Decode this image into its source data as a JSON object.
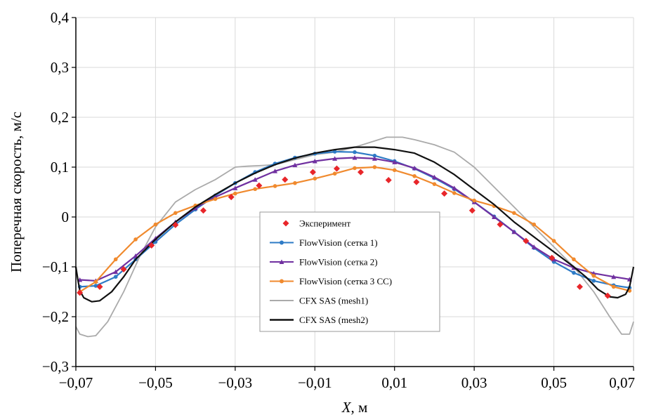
{
  "chart_data": {
    "type": "line",
    "xlabel_var": "X",
    "xlabel_unit": ", м",
    "ylabel": "Поперечная скорость, м/с",
    "xlim": [
      -0.07,
      0.07
    ],
    "ylim": [
      -0.3,
      0.4
    ],
    "x_ticks": [
      -0.07,
      -0.05,
      -0.03,
      -0.01,
      0.01,
      0.03,
      0.05,
      0.07
    ],
    "x_tick_labels": [
      "−0,07",
      "−0,05",
      "−0,03",
      "−0,01",
      "0,01",
      "0,03",
      "0,05",
      "0,07"
    ],
    "y_ticks": [
      -0.3,
      -0.2,
      -0.1,
      0,
      0.1,
      0.2,
      0.3,
      0.4
    ],
    "y_tick_labels": [
      "−0,3",
      "−0,2",
      "−0,1",
      "0",
      "0,1",
      "0,2",
      "0,3",
      "0,4"
    ],
    "grid": true,
    "legend_position": "center",
    "series": [
      {
        "name": "Эксперимент",
        "style": "diamond-markers",
        "color": "#e8262a",
        "x": [
          -0.069,
          -0.064,
          -0.058,
          -0.051,
          -0.045,
          -0.038,
          -0.031,
          -0.024,
          -0.0175,
          -0.0105,
          -0.0045,
          0.0015,
          0.0085,
          0.0155,
          0.0225,
          0.0295,
          0.0365,
          0.043,
          0.0495,
          0.0565,
          0.0635
        ],
        "y": [
          -0.152,
          -0.14,
          -0.105,
          -0.057,
          -0.016,
          0.013,
          0.04,
          0.063,
          0.075,
          0.09,
          0.097,
          0.09,
          0.074,
          0.07,
          0.047,
          0.013,
          -0.015,
          -0.048,
          -0.082,
          -0.14,
          -0.158
        ]
      },
      {
        "name": "FlowVision (сетка 1)",
        "style": "line-markers",
        "color": "#2e7bc6",
        "x": [
          -0.069,
          -0.065,
          -0.06,
          -0.055,
          -0.05,
          -0.045,
          -0.04,
          -0.035,
          -0.03,
          -0.025,
          -0.02,
          -0.015,
          -0.01,
          -0.005,
          0,
          0.005,
          0.01,
          0.015,
          0.02,
          0.025,
          0.03,
          0.035,
          0.04,
          0.045,
          0.05,
          0.055,
          0.06,
          0.065,
          0.069
        ],
        "y": [
          -0.14,
          -0.138,
          -0.12,
          -0.085,
          -0.05,
          -0.015,
          0.015,
          0.043,
          0.068,
          0.09,
          0.107,
          0.119,
          0.127,
          0.131,
          0.13,
          0.123,
          0.112,
          0.097,
          0.078,
          0.056,
          0.03,
          0.001,
          -0.03,
          -0.062,
          -0.09,
          -0.112,
          -0.128,
          -0.137,
          -0.142
        ]
      },
      {
        "name": "FlowVision (сетка 2)",
        "style": "line-markers",
        "color": "#7030a0",
        "x": [
          -0.069,
          -0.065,
          -0.06,
          -0.055,
          -0.05,
          -0.045,
          -0.04,
          -0.035,
          -0.03,
          -0.025,
          -0.02,
          -0.015,
          -0.01,
          -0.005,
          0,
          0.005,
          0.01,
          0.015,
          0.02,
          0.025,
          0.03,
          0.035,
          0.04,
          0.045,
          0.05,
          0.055,
          0.06,
          0.065,
          0.069
        ],
        "y": [
          -0.126,
          -0.128,
          -0.11,
          -0.078,
          -0.043,
          -0.01,
          0.018,
          0.04,
          0.058,
          0.075,
          0.092,
          0.104,
          0.112,
          0.117,
          0.119,
          0.117,
          0.11,
          0.098,
          0.08,
          0.058,
          0.03,
          0.0,
          -0.03,
          -0.06,
          -0.085,
          -0.102,
          -0.113,
          -0.12,
          -0.125
        ]
      },
      {
        "name": "FlowVision (сетка 3 СС)",
        "style": "line-markers",
        "color": "#f08a2e",
        "x": [
          -0.069,
          -0.065,
          -0.06,
          -0.055,
          -0.05,
          -0.045,
          -0.04,
          -0.035,
          -0.03,
          -0.025,
          -0.02,
          -0.015,
          -0.01,
          -0.005,
          0,
          0.005,
          0.01,
          0.015,
          0.02,
          0.025,
          0.03,
          0.035,
          0.04,
          0.045,
          0.05,
          0.055,
          0.06,
          0.065,
          0.069
        ],
        "y": [
          -0.15,
          -0.13,
          -0.085,
          -0.045,
          -0.015,
          0.008,
          0.023,
          0.036,
          0.047,
          0.056,
          0.062,
          0.068,
          0.077,
          0.087,
          0.098,
          0.1,
          0.094,
          0.082,
          0.066,
          0.048,
          0.033,
          0.022,
          0.008,
          -0.015,
          -0.048,
          -0.085,
          -0.118,
          -0.14,
          -0.148
        ]
      },
      {
        "name": "CFX SAS (mesh1)",
        "style": "line",
        "color": "#aaaaaa",
        "x": [
          -0.07,
          -0.069,
          -0.067,
          -0.065,
          -0.062,
          -0.058,
          -0.054,
          -0.05,
          -0.045,
          -0.04,
          -0.035,
          -0.03,
          -0.027,
          -0.024,
          -0.02,
          -0.015,
          -0.01,
          -0.005,
          0,
          0.004,
          0.008,
          0.012,
          0.015,
          0.02,
          0.025,
          0.03,
          0.035,
          0.04,
          0.045,
          0.05,
          0.055,
          0.06,
          0.064,
          0.067,
          0.069,
          0.07
        ],
        "y": [
          -0.22,
          -0.235,
          -0.24,
          -0.238,
          -0.21,
          -0.15,
          -0.08,
          -0.02,
          0.03,
          0.055,
          0.075,
          0.1,
          0.102,
          0.103,
          0.105,
          0.115,
          0.125,
          0.13,
          0.14,
          0.15,
          0.16,
          0.16,
          0.155,
          0.145,
          0.13,
          0.1,
          0.06,
          0.02,
          -0.02,
          -0.06,
          -0.1,
          -0.15,
          -0.2,
          -0.235,
          -0.235,
          -0.21
        ]
      },
      {
        "name": "CFX SAS (mesh2)",
        "style": "line",
        "color": "#111111",
        "x": [
          -0.07,
          -0.0695,
          -0.069,
          -0.068,
          -0.066,
          -0.064,
          -0.061,
          -0.058,
          -0.055,
          -0.05,
          -0.045,
          -0.04,
          -0.035,
          -0.03,
          -0.025,
          -0.02,
          -0.015,
          -0.01,
          -0.005,
          0,
          0.005,
          0.01,
          0.015,
          0.02,
          0.025,
          0.03,
          0.035,
          0.04,
          0.045,
          0.05,
          0.055,
          0.058,
          0.061,
          0.064,
          0.066,
          0.068,
          0.069,
          0.0695,
          0.07
        ],
        "y": [
          -0.1,
          -0.125,
          -0.148,
          -0.162,
          -0.17,
          -0.168,
          -0.15,
          -0.12,
          -0.085,
          -0.045,
          -0.01,
          0.02,
          0.045,
          0.068,
          0.088,
          0.105,
          0.118,
          0.128,
          0.135,
          0.14,
          0.14,
          0.135,
          0.128,
          0.11,
          0.085,
          0.055,
          0.025,
          -0.01,
          -0.04,
          -0.07,
          -0.1,
          -0.12,
          -0.145,
          -0.16,
          -0.162,
          -0.155,
          -0.14,
          -0.12,
          -0.1
        ]
      }
    ]
  }
}
